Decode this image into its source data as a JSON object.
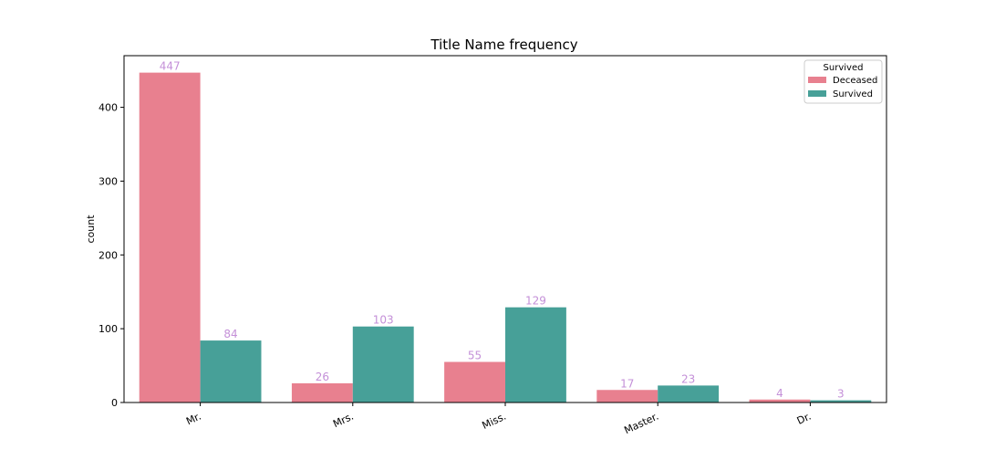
{
  "chart_data": {
    "type": "bar",
    "title": "Title Name frequency",
    "xlabel": "",
    "ylabel": "count",
    "categories": [
      "Mr.",
      "Mrs.",
      "Miss.",
      "Master.",
      "Dr."
    ],
    "series": [
      {
        "name": "Deceased",
        "color": "#e8808f",
        "values": [
          447,
          26,
          55,
          17,
          4
        ]
      },
      {
        "name": "Survived",
        "color": "#47a098",
        "values": [
          84,
          103,
          129,
          23,
          3
        ]
      }
    ],
    "ylim": [
      0,
      470
    ],
    "yticks": [
      0,
      100,
      200,
      300,
      400
    ],
    "legend": {
      "title": "Survived",
      "placement": "top-right"
    },
    "grid": false,
    "data_label_color": "#c490d8"
  }
}
